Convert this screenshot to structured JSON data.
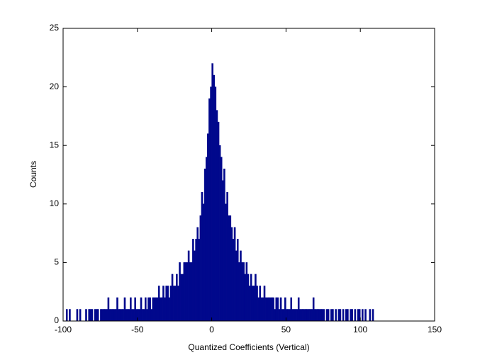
{
  "chart_data": {
    "type": "histogram",
    "xlabel": "Quantized Coefficients (Vertical)",
    "ylabel": "Counts",
    "color": "#00088c",
    "xlim": [
      -100,
      150
    ],
    "xticks": [
      -100,
      -50,
      0,
      50,
      100,
      150
    ],
    "ylim": [
      0,
      25
    ],
    "yticks": [
      0,
      5,
      10,
      15,
      20,
      25
    ],
    "bins": [
      -98,
      -97,
      -96,
      -95,
      -94,
      -93,
      -92,
      -91,
      -90,
      -89,
      -88,
      -87,
      -86,
      -85,
      -84,
      -83,
      -82,
      -81,
      -80,
      -79,
      -78,
      -77,
      -76,
      -75,
      -74,
      -73,
      -72,
      -71,
      -70,
      -69,
      -68,
      -67,
      -66,
      -65,
      -64,
      -63,
      -62,
      -61,
      -60,
      -59,
      -58,
      -57,
      -56,
      -55,
      -54,
      -53,
      -52,
      -51,
      -50,
      -49,
      -48,
      -47,
      -46,
      -45,
      -44,
      -43,
      -42,
      -41,
      -40,
      -39,
      -38,
      -37,
      -36,
      -35,
      -34,
      -33,
      -32,
      -31,
      -30,
      -29,
      -28,
      -27,
      -26,
      -25,
      -24,
      -23,
      -22,
      -21,
      -20,
      -19,
      -18,
      -17,
      -16,
      -15,
      -14,
      -13,
      -12,
      -11,
      -10,
      -9,
      -8,
      -7,
      -6,
      -5,
      -4,
      -3,
      -2,
      -1,
      0,
      1,
      2,
      3,
      4,
      5,
      6,
      7,
      8,
      9,
      10,
      11,
      12,
      13,
      14,
      15,
      16,
      17,
      18,
      19,
      20,
      21,
      22,
      23,
      24,
      25,
      26,
      27,
      28,
      29,
      30,
      31,
      32,
      33,
      34,
      35,
      36,
      37,
      38,
      39,
      40,
      41,
      42,
      43,
      44,
      45,
      46,
      47,
      48,
      49,
      50,
      51,
      52,
      53,
      54,
      55,
      56,
      57,
      58,
      59,
      60,
      61,
      62,
      63,
      64,
      65,
      66,
      67,
      68,
      69,
      70,
      71,
      72,
      73,
      74,
      75,
      76,
      77,
      78,
      79,
      80,
      81,
      82,
      83,
      84,
      85,
      86,
      87,
      88,
      89,
      90,
      91,
      92,
      93,
      94,
      95,
      96,
      97,
      98,
      99,
      100,
      101,
      102,
      103,
      104,
      105,
      106,
      107,
      108,
      109
    ],
    "values": [
      1,
      0,
      1,
      0,
      0,
      0,
      0,
      1,
      0,
      1,
      0,
      0,
      0,
      1,
      0,
      1,
      1,
      1,
      0,
      1,
      1,
      1,
      0,
      1,
      1,
      1,
      1,
      1,
      2,
      1,
      1,
      1,
      1,
      1,
      2,
      1,
      1,
      1,
      1,
      2,
      1,
      1,
      1,
      2,
      1,
      1,
      2,
      1,
      1,
      1,
      2,
      1,
      1,
      2,
      1,
      2,
      2,
      1,
      2,
      2,
      2,
      2,
      3,
      2,
      2,
      3,
      2,
      3,
      3,
      2,
      3,
      4,
      3,
      3,
      4,
      3,
      5,
      4,
      4,
      5,
      5,
      5,
      6,
      5,
      5,
      7,
      6,
      7,
      8,
      7,
      9,
      11,
      10,
      13,
      14,
      16,
      19,
      20,
      22,
      21,
      20,
      18,
      17,
      15,
      14,
      12,
      13,
      10,
      11,
      9,
      9,
      8,
      7,
      8,
      6,
      7,
      5,
      6,
      5,
      5,
      4,
      5,
      4,
      3,
      4,
      3,
      3,
      4,
      3,
      2,
      3,
      2,
      2,
      3,
      2,
      2,
      2,
      2,
      2,
      2,
      1,
      2,
      2,
      1,
      2,
      1,
      1,
      2,
      1,
      1,
      1,
      2,
      1,
      1,
      1,
      1,
      2,
      1,
      1,
      1,
      1,
      1,
      1,
      1,
      1,
      1,
      2,
      1,
      1,
      1,
      1,
      1,
      1,
      1,
      0,
      1,
      1,
      0,
      1,
      1,
      0,
      1,
      0,
      1,
      1,
      0,
      1,
      0,
      1,
      1,
      0,
      1,
      1,
      0,
      1,
      0,
      1,
      1,
      0,
      1,
      0,
      1,
      0,
      0,
      1,
      0,
      1
    ]
  }
}
